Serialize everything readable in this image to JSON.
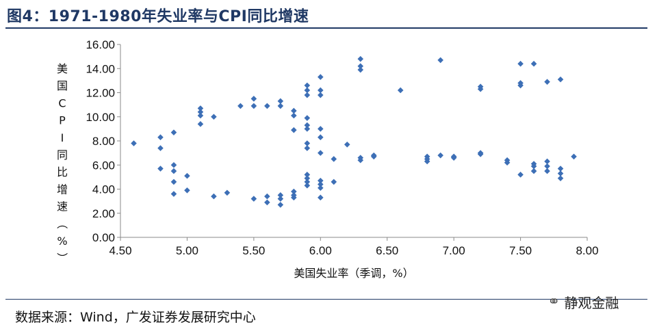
{
  "header": {
    "title": "图4：1971-1980年失业率与CPI同比增速"
  },
  "footer": {
    "source": "数据来源：Wind，广发证券发展研究中心"
  },
  "watermark": {
    "icon": "wechat-icon",
    "text": "静观金融"
  },
  "chart_data": {
    "type": "scatter",
    "title": "图4：1971-1980年失业率与CPI同比增速",
    "xlabel": "美国失业率（季调，%）",
    "ylabel": "美国CPI同比增速（%）",
    "xlim": [
      4.5,
      8.0
    ],
    "ylim": [
      0.0,
      16.0
    ],
    "x_ticks": [
      "4.50",
      "5.00",
      "5.50",
      "6.00",
      "6.50",
      "7.00",
      "7.50",
      "8.00"
    ],
    "y_ticks": [
      "0.00",
      "2.00",
      "4.00",
      "6.00",
      "8.00",
      "10.00",
      "12.00",
      "14.00",
      "16.00"
    ],
    "grid": false,
    "marker": "diamond",
    "color": "#3d6fb6",
    "points": [
      [
        4.6,
        7.8
      ],
      [
        4.8,
        8.3
      ],
      [
        4.8,
        7.4
      ],
      [
        4.8,
        5.7
      ],
      [
        4.9,
        8.7
      ],
      [
        4.9,
        6.0
      ],
      [
        4.9,
        5.5
      ],
      [
        4.9,
        4.6
      ],
      [
        4.9,
        3.6
      ],
      [
        5.0,
        5.1
      ],
      [
        5.0,
        3.9
      ],
      [
        5.1,
        10.7
      ],
      [
        5.1,
        10.4
      ],
      [
        5.1,
        10.1
      ],
      [
        5.1,
        9.4
      ],
      [
        5.2,
        10.0
      ],
      [
        5.2,
        3.4
      ],
      [
        5.3,
        3.7
      ],
      [
        5.4,
        10.9
      ],
      [
        5.5,
        11.5
      ],
      [
        5.5,
        10.9
      ],
      [
        5.5,
        3.2
      ],
      [
        5.6,
        10.9
      ],
      [
        5.6,
        3.4
      ],
      [
        5.6,
        2.9
      ],
      [
        5.7,
        11.3
      ],
      [
        5.7,
        10.9
      ],
      [
        5.7,
        3.5
      ],
      [
        5.7,
        3.2
      ],
      [
        5.7,
        2.7
      ],
      [
        5.8,
        10.5
      ],
      [
        5.8,
        10.1
      ],
      [
        5.8,
        8.9
      ],
      [
        5.8,
        3.8
      ],
      [
        5.8,
        3.5
      ],
      [
        5.8,
        3.3
      ],
      [
        5.9,
        12.6
      ],
      [
        5.9,
        12.2
      ],
      [
        5.9,
        11.8
      ],
      [
        5.9,
        9.9
      ],
      [
        5.9,
        9.3
      ],
      [
        5.9,
        9.0
      ],
      [
        5.9,
        7.8
      ],
      [
        5.9,
        7.4
      ],
      [
        5.9,
        5.2
      ],
      [
        5.9,
        4.9
      ],
      [
        5.9,
        4.6
      ],
      [
        5.9,
        4.3
      ],
      [
        6.0,
        13.3
      ],
      [
        6.0,
        12.2
      ],
      [
        6.0,
        11.8
      ],
      [
        6.0,
        9.0
      ],
      [
        6.0,
        8.3
      ],
      [
        6.0,
        7.0
      ],
      [
        6.0,
        4.7
      ],
      [
        6.0,
        4.4
      ],
      [
        6.0,
        4.1
      ],
      [
        6.0,
        3.3
      ],
      [
        6.1,
        6.5
      ],
      [
        6.1,
        4.6
      ],
      [
        6.2,
        7.7
      ],
      [
        6.3,
        14.8
      ],
      [
        6.3,
        14.2
      ],
      [
        6.3,
        13.9
      ],
      [
        6.3,
        6.6
      ],
      [
        6.3,
        6.4
      ],
      [
        6.4,
        6.8
      ],
      [
        6.4,
        6.7
      ],
      [
        6.6,
        12.2
      ],
      [
        6.8,
        6.7
      ],
      [
        6.8,
        6.5
      ],
      [
        6.8,
        6.3
      ],
      [
        6.9,
        14.7
      ],
      [
        6.9,
        6.8
      ],
      [
        7.0,
        6.7
      ],
      [
        7.0,
        6.6
      ],
      [
        7.2,
        12.5
      ],
      [
        7.2,
        12.3
      ],
      [
        7.2,
        7.0
      ],
      [
        7.2,
        6.9
      ],
      [
        7.4,
        6.4
      ],
      [
        7.4,
        6.2
      ],
      [
        7.5,
        14.4
      ],
      [
        7.5,
        12.8
      ],
      [
        7.5,
        12.6
      ],
      [
        7.5,
        5.2
      ],
      [
        7.6,
        14.4
      ],
      [
        7.6,
        6.1
      ],
      [
        7.6,
        5.9
      ],
      [
        7.6,
        5.5
      ],
      [
        7.7,
        12.9
      ],
      [
        7.7,
        6.3
      ],
      [
        7.7,
        5.9
      ],
      [
        7.7,
        5.5
      ],
      [
        7.8,
        13.1
      ],
      [
        7.8,
        5.7
      ],
      [
        7.8,
        5.3
      ],
      [
        7.8,
        4.9
      ],
      [
        7.9,
        6.7
      ]
    ]
  }
}
